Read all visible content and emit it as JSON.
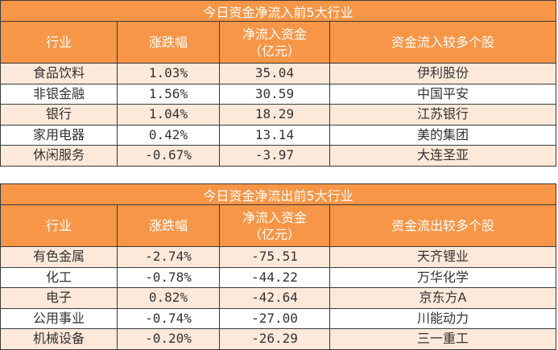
{
  "inflow": {
    "title": "今日资金净流入前5大行业",
    "headers": [
      "行业",
      "涨跌幅",
      "净流入资金\n（亿元）",
      "资金流入较多个股"
    ],
    "rows": [
      [
        "食品饮料",
        "1.03%",
        "35.04",
        "伊利股份"
      ],
      [
        "非银金融",
        "1.56%",
        "30.59",
        "中国平安"
      ],
      [
        "银行",
        "1.04%",
        "18.29",
        "江苏银行"
      ],
      [
        "家用电器",
        "0.42%",
        "13.14",
        "美的集团"
      ],
      [
        "休闲服务",
        "-0.67%",
        "-3.97",
        "大连圣亚"
      ]
    ]
  },
  "outflow": {
    "title": "今日资金净流出前5大行业",
    "headers": [
      "行业",
      "涨跌幅",
      "净流入资金\n（亿元）",
      "资金流出较多个股"
    ],
    "rows": [
      [
        "有色金属",
        "-2.74%",
        "-75.51",
        "天齐锂业"
      ],
      [
        "化工",
        "-0.78%",
        "-44.22",
        "万华化学"
      ],
      [
        "电子",
        "0.82%",
        "-42.64",
        "京东方A"
      ],
      [
        "公用事业",
        "-0.74%",
        "-27.00",
        "川能动力"
      ],
      [
        "机械设备",
        "-0.20%",
        "-26.29",
        "三一重工"
      ]
    ]
  },
  "colors": {
    "header": "#F79646",
    "band": "#FDE9D9"
  }
}
